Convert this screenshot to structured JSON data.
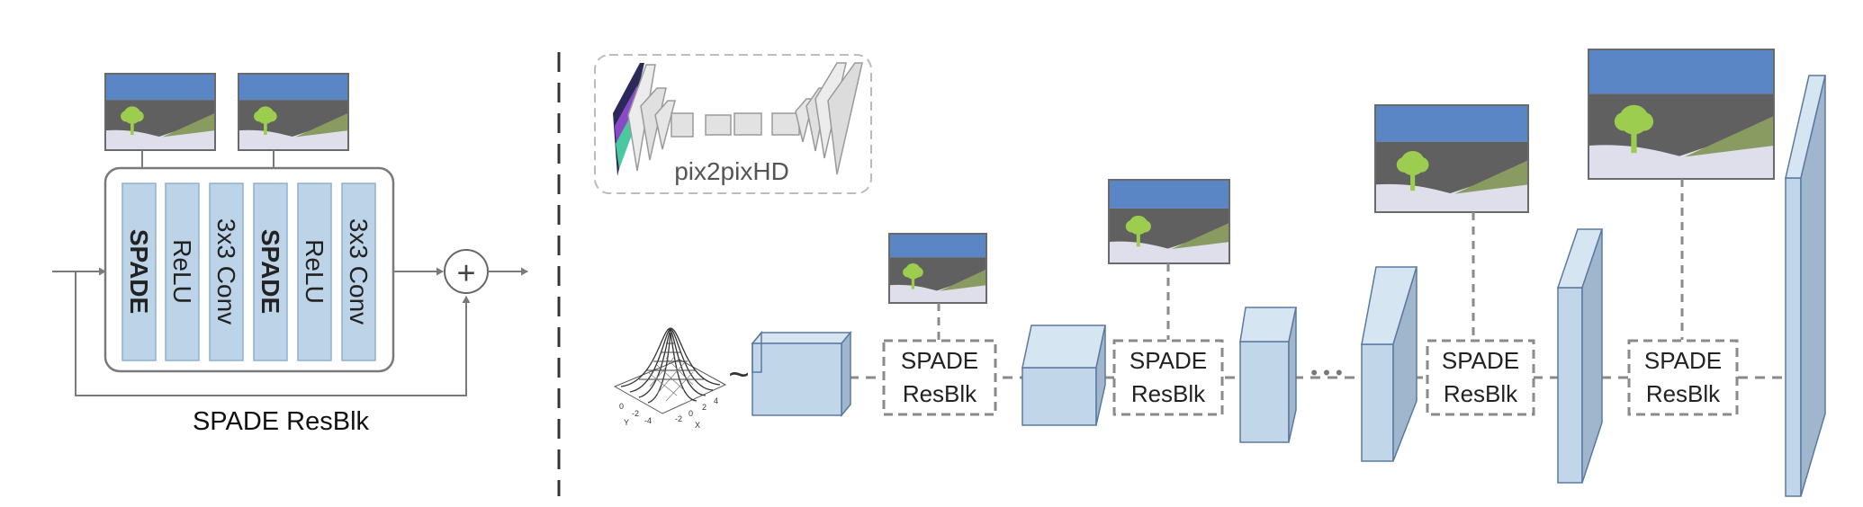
{
  "resblk": {
    "layers": [
      "SPADE",
      "ReLU",
      "3x3 Conv",
      "SPADE",
      "ReLU",
      "3x3 Conv"
    ],
    "bold_layers": [
      true,
      false,
      false,
      true,
      false,
      false
    ],
    "caption": "SPADE ResBlk",
    "sum_symbol": "+"
  },
  "generator": {
    "pix2pixhd_label": "pix2pixHD",
    "tilde": "~",
    "block_line1": "SPADE",
    "block_line2": "ResBlk",
    "ellipsis": "• • •",
    "gaussian_axis_labels": [
      "0",
      "-2",
      "-4",
      "-2",
      "0",
      "2",
      "4",
      "Y",
      "X"
    ]
  },
  "colors": {
    "layer_fill": "#bcd3e8",
    "layer_stroke": "#8fb0cf",
    "tensor_front": "#c2d6e9",
    "tensor_top": "#d6e5f2",
    "tensor_side": "#9fb6cd",
    "tensor_stroke": "#5b79a0",
    "sky": "#5a86c5",
    "mountain": "#606060",
    "grass": "#8a9b62",
    "ground": "#dfdfec",
    "tree": "#9ccd4f",
    "line": "#7a7a7a",
    "dash": "#8a8a8a"
  }
}
